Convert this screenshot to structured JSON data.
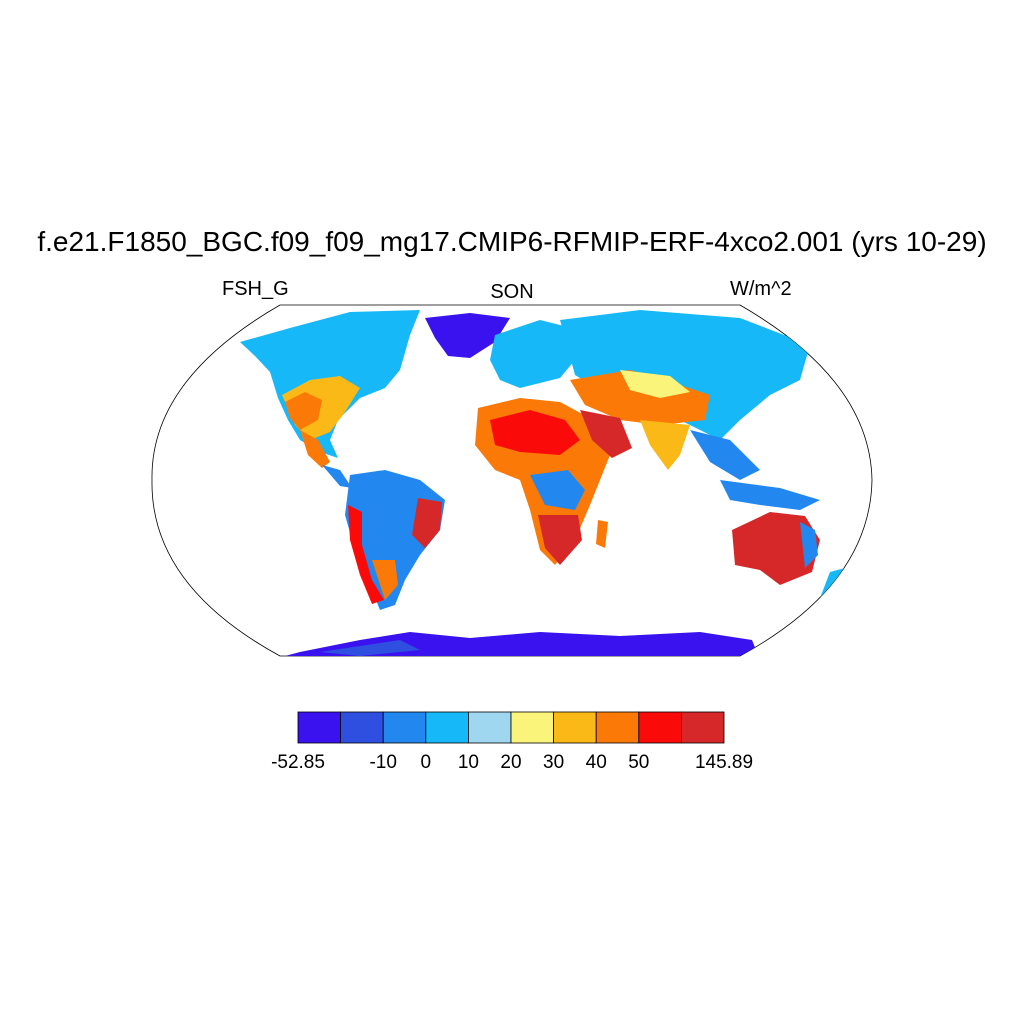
{
  "title": "f.e21.F1850_BGC.f09_f09_mg17.CMIP6-RFMIP-ERF-4xco2.001 (yrs 10-29)",
  "left_subtitle": "FSH_G",
  "center_subtitle": "SON",
  "right_subtitle": "W/m^2",
  "colorbar": {
    "colors": [
      "#3a12f0",
      "#2f4fe0",
      "#2288f0",
      "#16b8f7",
      "#9fd6f0",
      "#fbf47b",
      "#fbb917",
      "#fb7a07",
      "#fb0a0a",
      "#d62828"
    ],
    "labels": [
      {
        "text": "-52.85",
        "boundary": 0
      },
      {
        "text": "-10",
        "boundary": 2
      },
      {
        "text": "0",
        "boundary": 3
      },
      {
        "text": "10",
        "boundary": 4
      },
      {
        "text": "20",
        "boundary": 5
      },
      {
        "text": "30",
        "boundary": 6
      },
      {
        "text": "40",
        "boundary": 7
      },
      {
        "text": "50",
        "boundary": 8
      },
      {
        "text": "145.89",
        "boundary": 10
      }
    ]
  }
}
